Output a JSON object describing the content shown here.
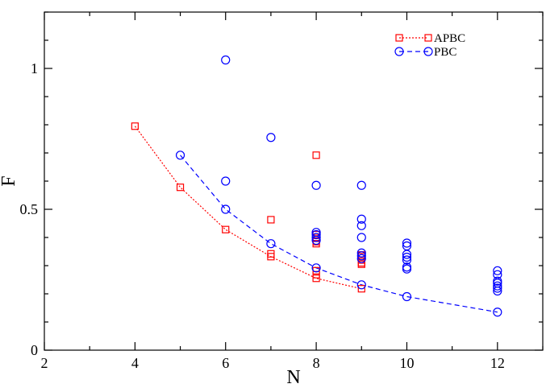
{
  "chart_data": {
    "type": "scatter",
    "title": "",
    "xlabel": "N",
    "ylabel": "F",
    "xlim": [
      2,
      13
    ],
    "ylim": [
      0,
      1.2
    ],
    "x_ticks": [
      2,
      4,
      6,
      8,
      10,
      12
    ],
    "x_tick_labels": [
      "2",
      "4",
      "6",
      "8",
      "10",
      "12"
    ],
    "y_ticks": [
      0,
      0.5,
      1
    ],
    "y_tick_labels": [
      "0",
      "0.5",
      "1"
    ],
    "grid": false,
    "legend_position": "top-right",
    "series": [
      {
        "name": "APBC",
        "color": "#ff0000",
        "marker": "square",
        "line": "dotted",
        "x": [
          4,
          5,
          6,
          7,
          8,
          9
        ],
        "y": [
          0.795,
          0.578,
          0.428,
          0.332,
          0.255,
          0.218
        ],
        "points": [
          [
            4,
            0.795
          ],
          [
            5,
            0.578
          ],
          [
            6,
            0.428
          ],
          [
            7,
            0.463
          ],
          [
            7,
            0.342
          ],
          [
            7,
            0.332
          ],
          [
            8,
            0.692
          ],
          [
            8,
            0.41
          ],
          [
            8,
            0.397
          ],
          [
            8,
            0.385
          ],
          [
            8,
            0.378
          ],
          [
            8,
            0.282
          ],
          [
            8,
            0.268
          ],
          [
            8,
            0.255
          ],
          [
            9,
            0.338
          ],
          [
            9,
            0.332
          ],
          [
            9,
            0.32
          ],
          [
            9,
            0.31
          ],
          [
            9,
            0.305
          ],
          [
            9,
            0.218
          ]
        ]
      },
      {
        "name": "PBC",
        "color": "#0000ff",
        "marker": "circle",
        "line": "dashed",
        "x": [
          5,
          6,
          7,
          8,
          9,
          10,
          12
        ],
        "y": [
          0.692,
          0.5,
          0.378,
          0.292,
          0.232,
          0.19,
          0.135
        ],
        "points": [
          [
            5,
            0.692
          ],
          [
            6,
            1.03
          ],
          [
            6,
            0.6
          ],
          [
            6,
            0.5
          ],
          [
            7,
            0.755
          ],
          [
            7,
            0.378
          ],
          [
            8,
            0.585
          ],
          [
            8,
            0.418
          ],
          [
            8,
            0.41
          ],
          [
            8,
            0.4
          ],
          [
            8,
            0.39
          ],
          [
            8,
            0.292
          ],
          [
            9,
            0.585
          ],
          [
            9,
            0.465
          ],
          [
            9,
            0.442
          ],
          [
            9,
            0.4
          ],
          [
            9,
            0.345
          ],
          [
            9,
            0.335
          ],
          [
            9,
            0.325
          ],
          [
            9,
            0.232
          ],
          [
            10,
            0.38
          ],
          [
            10,
            0.37
          ],
          [
            10,
            0.34
          ],
          [
            10,
            0.33
          ],
          [
            10,
            0.32
          ],
          [
            10,
            0.295
          ],
          [
            10,
            0.288
          ],
          [
            10,
            0.19
          ],
          [
            12,
            0.282
          ],
          [
            12,
            0.268
          ],
          [
            12,
            0.245
          ],
          [
            12,
            0.238
          ],
          [
            12,
            0.228
          ],
          [
            12,
            0.22
          ],
          [
            12,
            0.21
          ],
          [
            12,
            0.135
          ]
        ]
      }
    ]
  }
}
